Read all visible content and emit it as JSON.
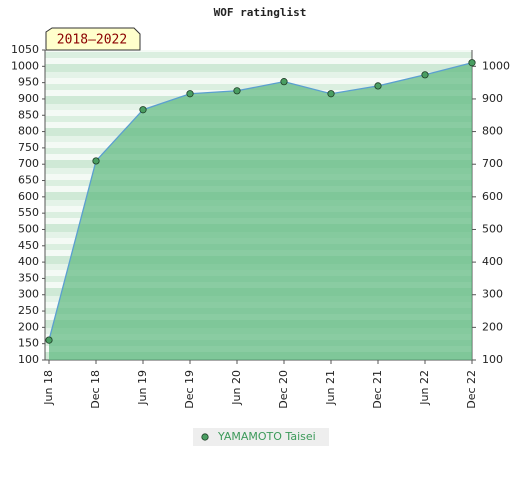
{
  "chart_data": {
    "type": "line",
    "title": "WOF ratinglist",
    "annotation": "2018–2022",
    "categories": [
      "Jun 18",
      "Dec 18",
      "Jun 19",
      "Dec 19",
      "Jun 20",
      "Dec 20",
      "Jun 21",
      "Dec 21",
      "Jun 22",
      "Dec 22"
    ],
    "series": [
      {
        "name": "YAMAMOTO Taisei",
        "color": "#5b9fd0",
        "values": [
          161,
          710,
          867,
          916,
          925,
          953,
          916,
          940,
          974,
          1011
        ]
      }
    ],
    "area_color": "#5cb87f",
    "marker_color": "#4a9e62",
    "legend_text_color": "#3c9a5a",
    "ylim": [
      100,
      1050
    ],
    "yticks": [
      100,
      150,
      200,
      250,
      300,
      350,
      400,
      450,
      500,
      550,
      600,
      650,
      700,
      750,
      800,
      850,
      900,
      950,
      1000,
      1050
    ],
    "y2lim": [
      100,
      1050
    ],
    "y2ticks": [
      100,
      200,
      300,
      400,
      500,
      600,
      700,
      800,
      900,
      1000
    ]
  }
}
